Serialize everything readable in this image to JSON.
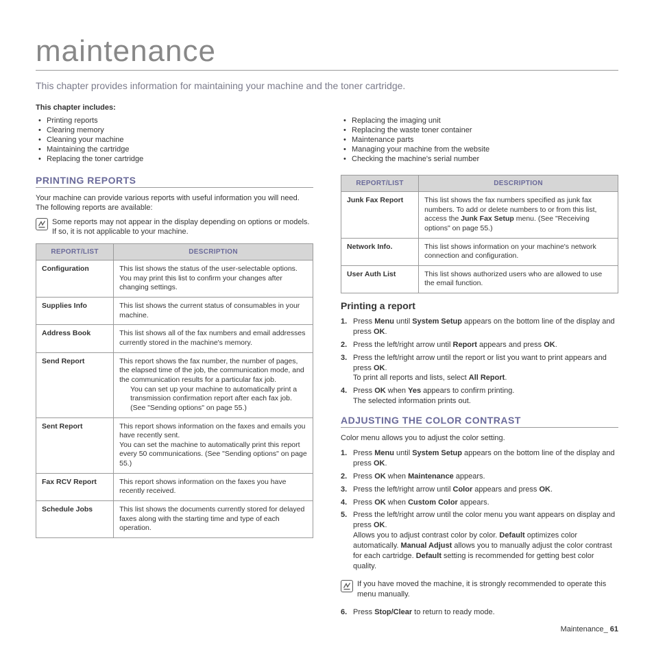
{
  "title": "maintenance",
  "subtitle": "This chapter provides information for maintaining your machine and the toner cartridge.",
  "chapter_includes_label": "This chapter includes:",
  "chapter_left": [
    "Printing reports",
    "Clearing memory",
    "Cleaning your machine",
    "Maintaining the cartridge",
    "Replacing the toner cartridge"
  ],
  "chapter_right": [
    "Replacing the imaging unit",
    "Replacing the waste toner container",
    "Maintenance parts",
    "Managing your machine from the website",
    "Checking the machine's serial number"
  ],
  "section1": {
    "heading": "PRINTING REPORTS",
    "intro": "Your machine can provide various reports with useful information you will need. The following reports are available:",
    "note": "Some reports may not appear in the display depending on options or models. If so, it is not applicable to your machine."
  },
  "table_headers": {
    "c1": "REPORT/LIST",
    "c2": "DESCRIPTION"
  },
  "table_left": [
    {
      "name": "Configuration",
      "desc": "This list shows the status of the user-selectable options. You may print this list to confirm your changes after changing settings."
    },
    {
      "name": "Supplies Info",
      "desc": "This list shows the current status of consumables in your machine."
    },
    {
      "name": "Address Book",
      "desc": "This list shows all of the fax numbers and email addresses currently stored in the machine's memory."
    },
    {
      "name": "Send Report",
      "desc": "This report shows the fax number, the number of pages, the elapsed time of the job, the communication mode, and the communication results for a particular fax job.",
      "extra": "You can set up your machine to automatically print a transmission confirmation report after each fax job. (See \"Sending options\" on page 55.)"
    },
    {
      "name": "Sent Report",
      "desc": "This report shows information on the faxes and emails you have recently sent.",
      "extra2": "You can set the machine to automatically print this report every 50 communications. (See \"Sending options\" on page 55.)"
    },
    {
      "name": "Fax RCV Report",
      "desc": "This report shows information on the faxes you have recently received."
    },
    {
      "name": "Schedule Jobs",
      "desc": "This list shows the documents currently stored for delayed faxes along with the starting time and type of each operation."
    }
  ],
  "table_right": [
    {
      "name": "Junk Fax Report",
      "desc": "This list shows the fax numbers specified as junk fax numbers. To add or delete numbers to or from this list, access the <b>Junk Fax Setup</b> menu. (See \"Receiving options\" on page 55.)"
    },
    {
      "name": "Network Info.",
      "desc": "This list shows information on your machine's network connection and configuration."
    },
    {
      "name": "User Auth List",
      "desc": "This list shows authorized users who are allowed to use the email function."
    }
  ],
  "printing_report": {
    "heading": "Printing a report",
    "steps": [
      "Press <b>Menu</b> until <b>System Setup</b> appears on the bottom line of the display and press <b>OK</b>.",
      "Press the left/right arrow until <b>Report</b> appears and press <b>OK</b>.",
      "Press the left/right arrow until the report or list you want to print appears and press <b>OK</b>.<span class=\"sub\">To print all reports and lists, select <b>All Report</b>.</span>",
      "Press <b>OK</b> when <b>Yes</b> appears to confirm printing.<span class=\"sub\">The selected information prints out.</span>"
    ]
  },
  "section2": {
    "heading": "ADJUSTING THE COLOR CONTRAST",
    "intro": "Color menu allows you to adjust the color setting.",
    "steps": [
      "Press <b>Menu</b> until <b>System Setup</b> appears on the bottom line of the display and press <b>OK</b>.",
      "Press <b>OK</b> when <b>Maintenance</b> appears.",
      "Press the left/right arrow until <b>Color</b> appears and press <b>OK</b>.",
      "Press <b>OK</b> when <b>Custom Color</b> appears.",
      "Press the left/right arrow until the color menu you want appears on display and press <b>OK</b>.<span class=\"sub\">Allows you to adjust contrast color by color. <b>Default</b> optimizes color automatically. <b>Manual Adjust</b> allows you to manually adjust the color contrast for each cartridge. <b>Default</b> setting is recommended for getting best color quality.</span>"
    ],
    "note": "If you have moved the machine, it is strongly recommended to operate this menu manually.",
    "step6": "Press <b>Stop/Clear</b> to return to ready mode."
  },
  "footer": {
    "label": "Maintenance",
    "sep": "_",
    "page": "61"
  }
}
